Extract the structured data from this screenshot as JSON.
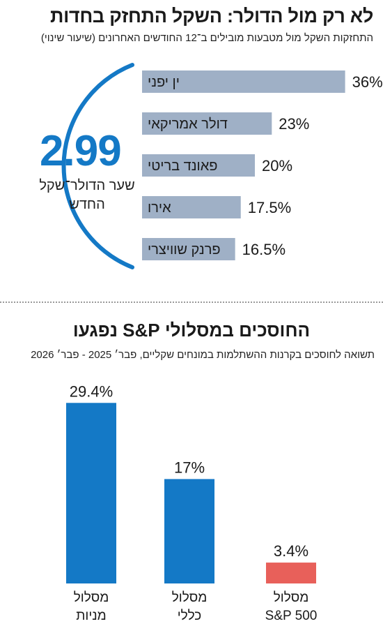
{
  "title": "לא רק מול הדולר: השקל התחזק בחדות",
  "subtitle": "התחזקות השקל מול מטבעות מובילים ב־12 החודשים האחרונים (שיעור שינוי)",
  "highlight": {
    "value": "2.99",
    "caption": "שער הדולר־שקל החדש"
  },
  "colors": {
    "accent_blue": "#1479c6",
    "bar_gray": "#9fb0c6",
    "highlight_red": "#e8605a"
  },
  "chart_data": [
    {
      "type": "bar",
      "orientation": "horizontal",
      "title": "לא רק מול הדולר: השקל התחזק בחדות",
      "subtitle": "התחזקות השקל מול מטבעות מובילים ב־12 החודשים האחרונים (שיעור שינוי)",
      "categories": [
        "ין יפני",
        "דולר אמריקאי",
        "פאונד בריטי",
        "אירו",
        "פרנק שוויצרי"
      ],
      "values": [
        36,
        23,
        20,
        17.5,
        16.5
      ],
      "value_labels": [
        "36%",
        "23%",
        "20%",
        "17.5%",
        "16.5%"
      ],
      "unit": "%"
    },
    {
      "type": "bar",
      "orientation": "vertical",
      "title": "החוסכים במסלולי S&P נפגעו",
      "subtitle": "תשואה לחוסכים בקרנות ההשתלמות במונחים שקליים, פבר׳ 2025 - פבר׳ 2026",
      "categories": [
        {
          "line1": "מסלול",
          "line2": "מניות"
        },
        {
          "line1": "מסלול",
          "line2": "כללי"
        },
        {
          "line1": "מסלול",
          "line2": "S&P 500"
        }
      ],
      "values": [
        29.4,
        17,
        3.4
      ],
      "value_labels": [
        "29.4%",
        "17%",
        "3.4%"
      ],
      "unit": "%"
    }
  ]
}
